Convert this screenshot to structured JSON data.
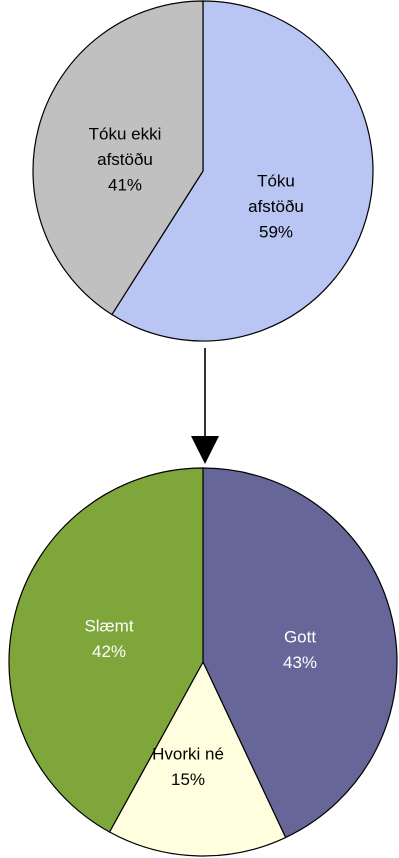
{
  "chart_data": [
    {
      "type": "pie",
      "categories": [
        "Tóku afstöðu",
        "Tóku ekki afstöðu"
      ],
      "values": [
        59,
        41
      ],
      "units": "%",
      "colors": [
        "#b9c5f2",
        "#c0c0c0"
      ],
      "label_colors": [
        "#000000",
        "#000000"
      ],
      "labels": [
        [
          "Tóku",
          "afstöðu",
          "59%"
        ],
        [
          "Tóku ekki",
          "afstöðu",
          "41%"
        ]
      ]
    },
    {
      "type": "pie",
      "categories": [
        "Gott",
        "Hvorki né",
        "Slæmt"
      ],
      "values": [
        43,
        15,
        42
      ],
      "units": "%",
      "colors": [
        "#666699",
        "#ffffe0",
        "#7ea63a"
      ],
      "label_colors": [
        "#ffffff",
        "#000000",
        "#ffffff"
      ],
      "labels": [
        [
          "Gott",
          "43%"
        ],
        [
          "Hvorki né",
          "15%"
        ],
        [
          "Slæmt",
          "42%"
        ]
      ]
    }
  ]
}
